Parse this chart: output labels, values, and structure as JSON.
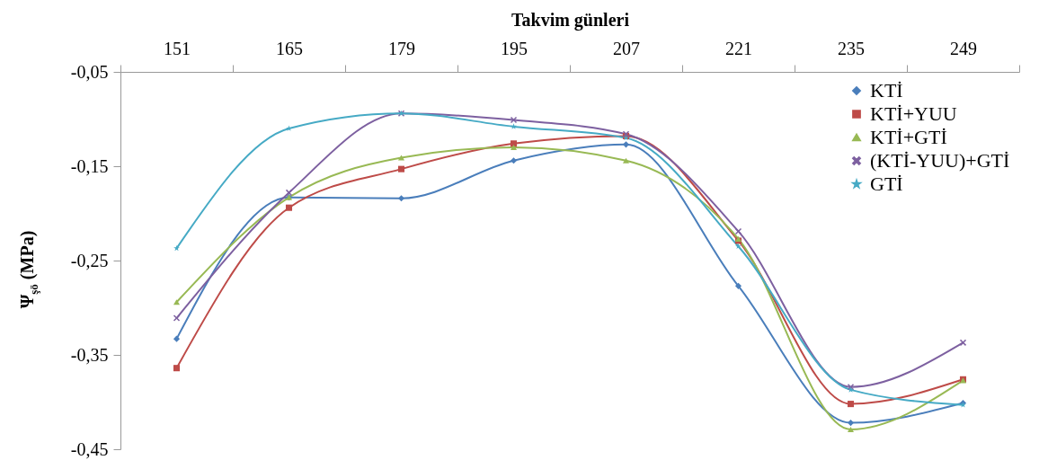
{
  "chart_data": {
    "type": "line",
    "xlabel": "Takvim günleri",
    "ylabel": "Ψ$_{şö}$ (MPa)",
    "categories": [
      "151",
      "165",
      "179",
      "195",
      "207",
      "221",
      "235",
      "249"
    ],
    "ylim": [
      -0.45,
      -0.05
    ],
    "yticks": [
      {
        "value": -0.05,
        "label": "-0,05"
      },
      {
        "value": -0.15,
        "label": "-0,15"
      },
      {
        "value": -0.25,
        "label": "-0,25"
      },
      {
        "value": -0.35,
        "label": "-0,35"
      },
      {
        "value": -0.45,
        "label": "-0,45"
      }
    ],
    "legend": "top right",
    "grid": false,
    "series": [
      {
        "name": "KTİ",
        "color": "#4a7ebb",
        "marker": "diamond",
        "values": [
          -0.333,
          -0.183,
          -0.184,
          -0.144,
          -0.127,
          -0.277,
          -0.422,
          -0.401
        ]
      },
      {
        "name": "KTİ+YUU",
        "color": "#be4b48",
        "marker": "square",
        "values": [
          -0.364,
          -0.194,
          -0.153,
          -0.126,
          -0.118,
          -0.229,
          -0.402,
          -0.376
        ]
      },
      {
        "name": "KTİ+GTİ",
        "color": "#98b954",
        "marker": "triangle",
        "values": [
          -0.294,
          -0.183,
          -0.141,
          -0.13,
          -0.144,
          -0.227,
          -0.429,
          -0.377
        ]
      },
      {
        "name": "(KTİ-YUU)+GTİ",
        "color": "#7d60a0",
        "marker": "cross",
        "values": [
          -0.311,
          -0.178,
          -0.094,
          -0.101,
          -0.116,
          -0.219,
          -0.384,
          -0.337
        ]
      },
      {
        "name": "GTİ",
        "color": "#46aac5",
        "marker": "star",
        "values": [
          -0.237,
          -0.11,
          -0.094,
          -0.108,
          -0.12,
          -0.235,
          -0.387,
          -0.403
        ]
      }
    ]
  }
}
